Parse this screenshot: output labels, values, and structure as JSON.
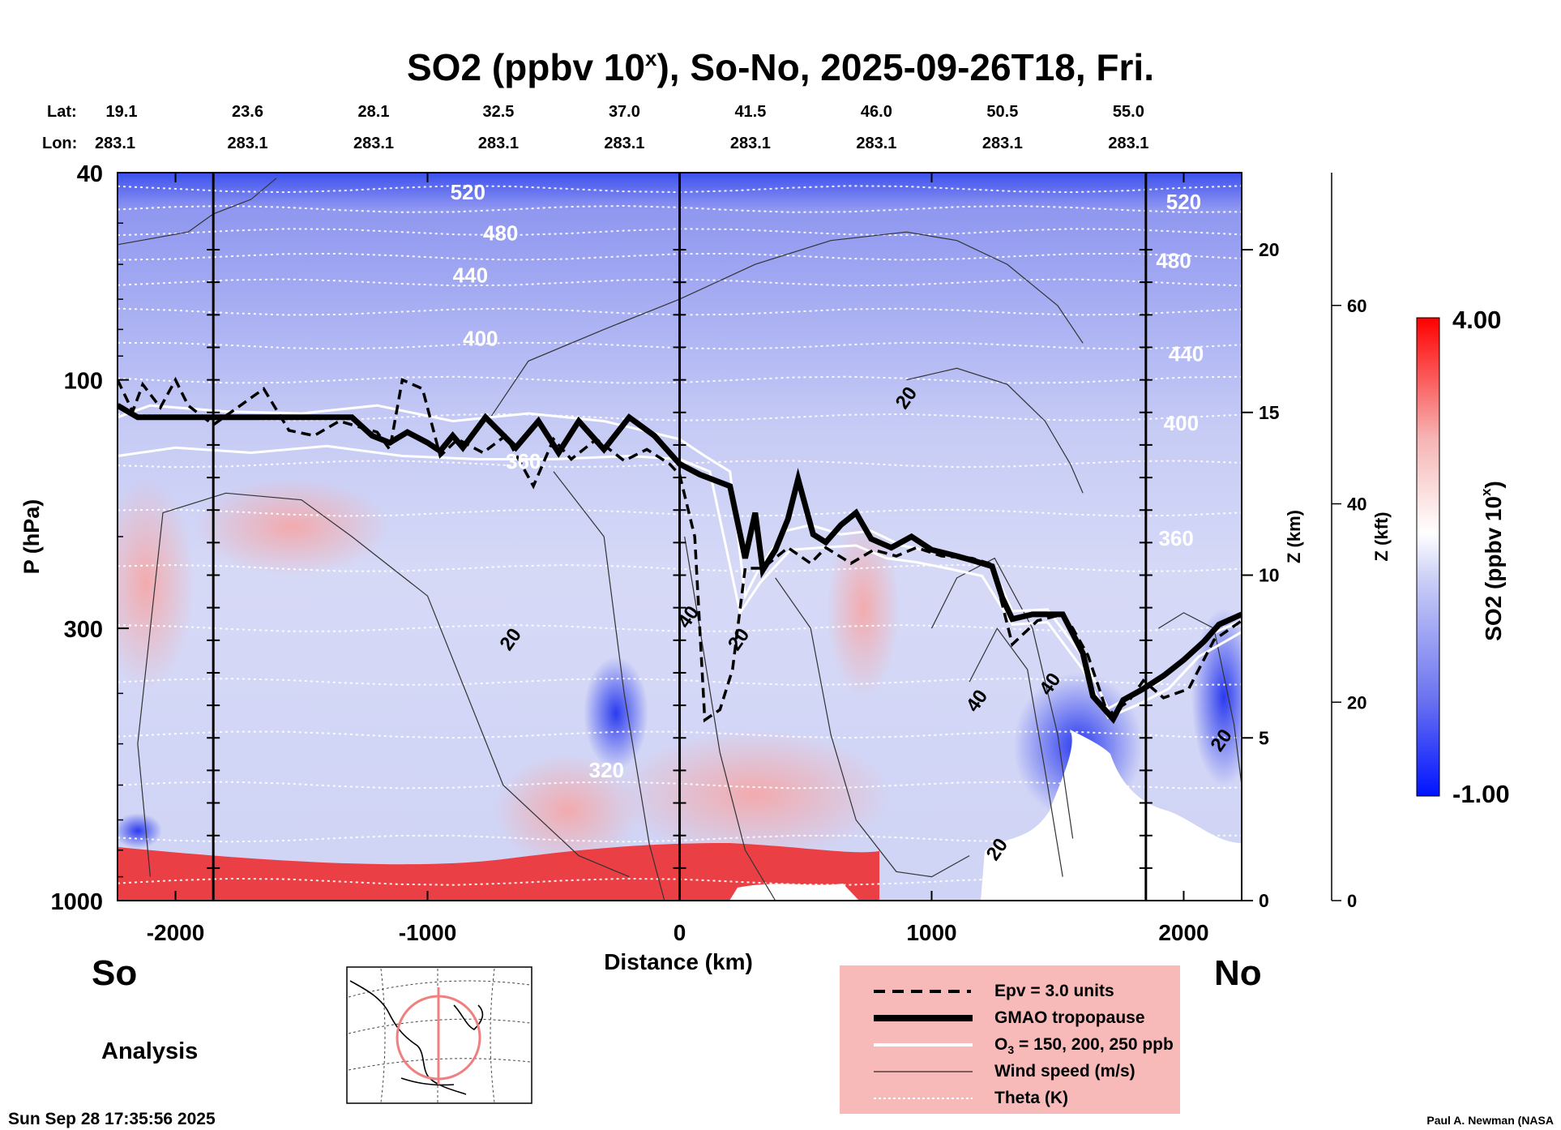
{
  "chart_data": {
    "type": "heatmap",
    "title": "SO2 (ppbv 10",
    "title_sup": "x",
    "title_tail": "), So-No, 2025-09-26T18, Fri.",
    "xlabel": "Distance (km)",
    "ylabel": "P (hPa)",
    "ylabel_z": "Z (km)",
    "ylabel_kft": "Z (kft)",
    "colorbar_label": "SO2 (ppbv 10",
    "colorbar_sup": "x",
    "colorbar_tail": ")",
    "colorbar_max": "4.00",
    "colorbar_min": "-1.00",
    "colorbar_range": [
      -1.0,
      4.0
    ],
    "xlim": [
      -2230,
      2230
    ],
    "ylim_hPa": [
      1000,
      40
    ],
    "x_ticks": [
      -2000,
      -1000,
      0,
      1000,
      2000
    ],
    "x_tick_labels": [
      "-2000",
      "-1000",
      "0",
      "1000",
      "2000"
    ],
    "p_ticks": [
      40,
      100,
      300,
      1000
    ],
    "p_tick_labels": [
      "40",
      "100",
      "300",
      "1000"
    ],
    "z_km_ticks": [
      0,
      5,
      10,
      15,
      20
    ],
    "z_km_tick_labels": [
      "0",
      "5",
      "10",
      "15",
      "20"
    ],
    "z_kft_ticks": [
      0,
      20,
      40,
      60
    ],
    "z_kft_tick_labels": [
      "0",
      "20",
      "40",
      "60"
    ],
    "lat_label": "Lat:",
    "lon_label": "Lon:",
    "lat_values": [
      "19.1",
      "23.6",
      "28.1",
      "32.5",
      "37.0",
      "41.5",
      "46.0",
      "50.5",
      "55.0"
    ],
    "lon_values": [
      "283.1",
      "283.1",
      "283.1",
      "283.1",
      "283.1",
      "283.1",
      "283.1",
      "283.1",
      "283.1"
    ],
    "lat_distances_km": [
      -2230,
      -1730,
      -1230,
      -735,
      -235,
      265,
      765,
      1265,
      1765
    ],
    "vertical_markers_km": [
      -1850,
      0,
      1850
    ],
    "theta_labels": [
      {
        "text": "520",
        "x_km": -840,
        "p": 45
      },
      {
        "text": "480",
        "x_km": -710,
        "p": 54
      },
      {
        "text": "440",
        "x_km": -830,
        "p": 65
      },
      {
        "text": "400",
        "x_km": -790,
        "p": 86
      },
      {
        "text": "360",
        "x_km": -620,
        "p": 148
      },
      {
        "text": "320",
        "x_km": -290,
        "p": 580
      },
      {
        "text": "520",
        "x_km": 2000,
        "p": 47
      },
      {
        "text": "480",
        "x_km": 1960,
        "p": 61
      },
      {
        "text": "440",
        "x_km": 2010,
        "p": 92
      },
      {
        "text": "400",
        "x_km": 1990,
        "p": 125
      },
      {
        "text": "360",
        "x_km": 1970,
        "p": 208
      }
    ],
    "wind_labels": [
      {
        "text": "20",
        "x_km": 920,
        "p": 110
      },
      {
        "text": "20",
        "x_km": -650,
        "p": 320
      },
      {
        "text": "40",
        "x_km": 55,
        "p": 290
      },
      {
        "text": "20",
        "x_km": 255,
        "p": 320
      },
      {
        "text": "40",
        "x_km": 1200,
        "p": 420
      },
      {
        "text": "40",
        "x_km": 1490,
        "p": 390
      },
      {
        "text": "20",
        "x_km": 1280,
        "p": 810
      },
      {
        "text": "20",
        "x_km": 2170,
        "p": 500
      }
    ],
    "tropopause_gmao": [
      [
        -2230,
        112
      ],
      [
        -2150,
        118
      ],
      [
        -1850,
        118
      ],
      [
        -1300,
        118
      ],
      [
        -1220,
        128
      ],
      [
        -1150,
        132
      ],
      [
        -1080,
        126
      ],
      [
        -1000,
        132
      ],
      [
        -950,
        137
      ],
      [
        -900,
        128
      ],
      [
        -860,
        135
      ],
      [
        -770,
        118
      ],
      [
        -650,
        135
      ],
      [
        -560,
        120
      ],
      [
        -480,
        138
      ],
      [
        -400,
        120
      ],
      [
        -300,
        136
      ],
      [
        -200,
        118
      ],
      [
        -100,
        128
      ],
      [
        0,
        145
      ],
      [
        80,
        152
      ],
      [
        200,
        160
      ],
      [
        260,
        220
      ],
      [
        300,
        180
      ],
      [
        330,
        232
      ],
      [
        380,
        212
      ],
      [
        430,
        185
      ],
      [
        470,
        155
      ],
      [
        530,
        198
      ],
      [
        580,
        205
      ],
      [
        640,
        190
      ],
      [
        700,
        180
      ],
      [
        760,
        202
      ],
      [
        840,
        210
      ],
      [
        920,
        200
      ],
      [
        1000,
        212
      ],
      [
        1100,
        218
      ],
      [
        1160,
        222
      ],
      [
        1240,
        228
      ],
      [
        1280,
        262
      ],
      [
        1320,
        288
      ],
      [
        1400,
        282
      ],
      [
        1520,
        282
      ],
      [
        1600,
        335
      ],
      [
        1640,
        405
      ],
      [
        1720,
        448
      ],
      [
        1760,
        412
      ],
      [
        1840,
        392
      ],
      [
        1920,
        370
      ],
      [
        2000,
        345
      ],
      [
        2080,
        318
      ],
      [
        2140,
        295
      ],
      [
        2230,
        282
      ]
    ],
    "epv_line": [
      [
        -2230,
        100
      ],
      [
        -2170,
        115
      ],
      [
        -2130,
        102
      ],
      [
        -2060,
        113
      ],
      [
        -2000,
        100
      ],
      [
        -1950,
        112
      ],
      [
        -1850,
        122
      ],
      [
        -1650,
        104
      ],
      [
        -1550,
        125
      ],
      [
        -1450,
        128
      ],
      [
        -1350,
        120
      ],
      [
        -1200,
        126
      ],
      [
        -1150,
        136
      ],
      [
        -1100,
        100
      ],
      [
        -1020,
        104
      ],
      [
        -950,
        140
      ],
      [
        -880,
        130
      ],
      [
        -780,
        138
      ],
      [
        -690,
        128
      ],
      [
        -580,
        160
      ],
      [
        -500,
        130
      ],
      [
        -430,
        142
      ],
      [
        -330,
        130
      ],
      [
        -220,
        143
      ],
      [
        -130,
        136
      ],
      [
        -40,
        145
      ],
      [
        0,
        152
      ],
      [
        60,
        200
      ],
      [
        100,
        450
      ],
      [
        160,
        430
      ],
      [
        210,
        360
      ],
      [
        260,
        230
      ],
      [
        330,
        230
      ],
      [
        430,
        210
      ],
      [
        520,
        225
      ],
      [
        580,
        210
      ],
      [
        680,
        225
      ],
      [
        770,
        212
      ],
      [
        860,
        218
      ],
      [
        940,
        210
      ],
      [
        1040,
        218
      ],
      [
        1160,
        220
      ],
      [
        1240,
        226
      ],
      [
        1320,
        322
      ],
      [
        1420,
        290
      ],
      [
        1520,
        282
      ],
      [
        1560,
        300
      ],
      [
        1620,
        338
      ],
      [
        1700,
        440
      ],
      [
        1780,
        415
      ],
      [
        1840,
        378
      ],
      [
        1920,
        408
      ],
      [
        2020,
        392
      ],
      [
        2120,
        316
      ],
      [
        2230,
        290
      ]
    ],
    "ozone_line": [
      [
        -2230,
        118
      ],
      [
        -2100,
        112
      ],
      [
        -1800,
        115
      ],
      [
        -1500,
        116
      ],
      [
        -1200,
        112
      ],
      [
        -900,
        120
      ],
      [
        -600,
        116
      ],
      [
        -300,
        120
      ],
      [
        0,
        130
      ],
      [
        100,
        140
      ],
      [
        200,
        150
      ],
      [
        260,
        260
      ],
      [
        320,
        228
      ],
      [
        420,
        195
      ],
      [
        520,
        190
      ],
      [
        640,
        198
      ],
      [
        760,
        195
      ],
      [
        880,
        208
      ],
      [
        1000,
        214
      ],
      [
        1120,
        220
      ],
      [
        1240,
        228
      ],
      [
        1320,
        278
      ],
      [
        1460,
        276
      ],
      [
        1600,
        340
      ],
      [
        1700,
        428
      ],
      [
        1800,
        402
      ],
      [
        1900,
        382
      ],
      [
        2000,
        345
      ],
      [
        2120,
        306
      ],
      [
        2230,
        290
      ]
    ],
    "ozone_line_2": [
      [
        -2230,
        140
      ],
      [
        -2000,
        135
      ],
      [
        -1700,
        138
      ],
      [
        -1400,
        134
      ],
      [
        -1100,
        140
      ],
      [
        -800,
        142
      ],
      [
        -500,
        142
      ],
      [
        -200,
        140
      ],
      [
        0,
        142
      ],
      [
        120,
        150
      ],
      [
        240,
        280
      ],
      [
        320,
        245
      ],
      [
        440,
        212
      ],
      [
        560,
        210
      ],
      [
        700,
        208
      ],
      [
        820,
        220
      ],
      [
        940,
        224
      ],
      [
        1060,
        230
      ],
      [
        1200,
        238
      ],
      [
        1320,
        295
      ],
      [
        1460,
        292
      ],
      [
        1600,
        360
      ],
      [
        1700,
        445
      ],
      [
        1820,
        420
      ],
      [
        1940,
        392
      ],
      [
        2060,
        340
      ],
      [
        2230,
        305
      ]
    ]
  },
  "labels": {
    "south": "So",
    "north": "No",
    "analysis": "Analysis",
    "timestamp": "Sun Sep 28 17:35:56 2025",
    "credit": "Paul A. Newman (NASA"
  },
  "legend": {
    "epv": "Epv = 3.0 units",
    "tropopause": "GMAO tropopause",
    "ozone_prefix": "O",
    "ozone_sub": "3",
    "ozone_tail": " = 150, 200, 250 ppb",
    "wind": "Wind speed (m/s)",
    "theta": "Theta (K)"
  },
  "colors": {
    "legend_bg": "#f8b9b9",
    "max_red": "#ff0000",
    "min_blue": "#0014ff",
    "mid": "#ffffff",
    "theta_line": "#ffffff"
  }
}
